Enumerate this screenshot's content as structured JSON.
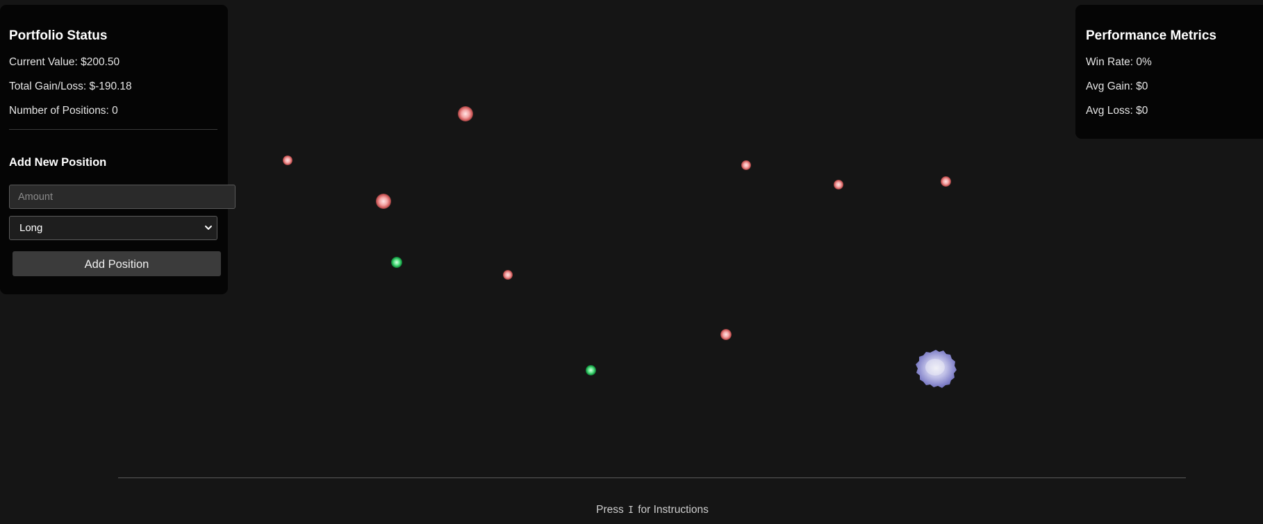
{
  "portfolio": {
    "title": "Portfolio Status",
    "current_value": "Current Value: $200.50",
    "total_gain_loss": "Total Gain/Loss: $-190.18",
    "num_positions": "Number of Positions: 0"
  },
  "add_position": {
    "title": "Add New Position",
    "amount_placeholder": "Amount",
    "amount_value": "",
    "type_selected": "Long",
    "button_label": "Add Position"
  },
  "metrics": {
    "title": "Performance Metrics",
    "win_rate": "Win Rate: 0%",
    "avg_gain": "Avg Gain: $0",
    "avg_loss": "Avg Loss: $0"
  },
  "hint": {
    "prefix": "Press ",
    "key": "I",
    "suffix": " for Instructions"
  },
  "colors": {
    "background": "#151515",
    "panel": "#050505",
    "loss_orb": "#d05a5a",
    "gain_orb": "#17a447",
    "blob": "#a9a9e8"
  },
  "icons": {
    "select_chevron": "chevron-down-icon"
  }
}
